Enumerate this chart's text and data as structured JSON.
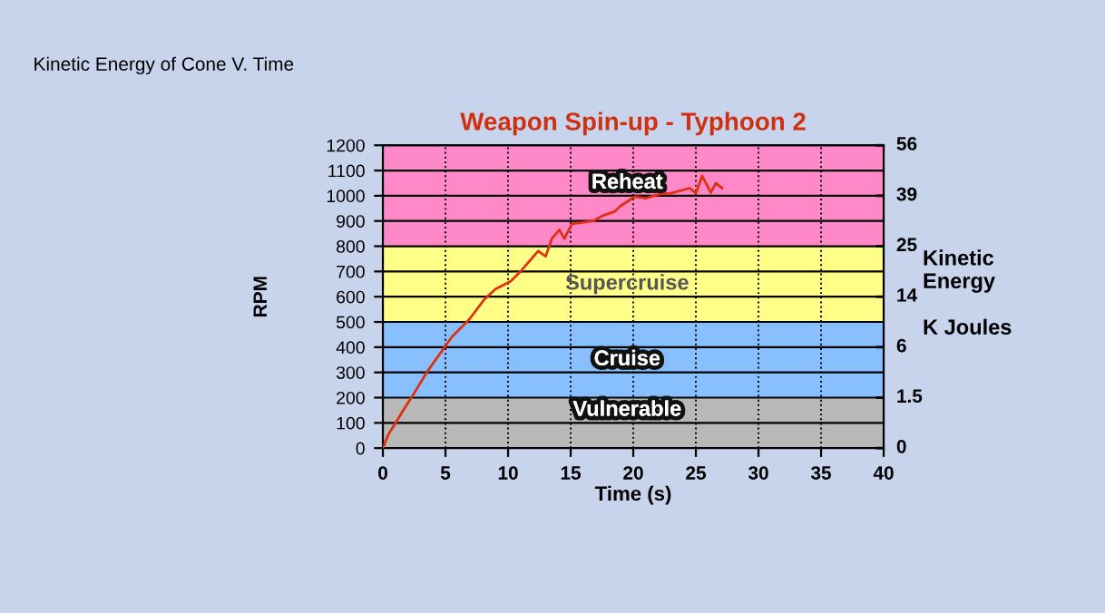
{
  "chart_data": {
    "type": "line",
    "title": "Weapon Spin-up - Typhoon 2",
    "xlabel": "Time (s)",
    "ylabel": "RPM",
    "annotations": [
      "Kinetic Energy of Cone V. Time",
      "Kinetic\nEnergy\n\nK Joules",
      "0",
      "1.5",
      "6",
      "14",
      "25",
      "39",
      "56"
    ],
    "series": [
      {
        "color": "#e03010",
        "x": [
          0,
          0.5,
          1.0,
          1.5,
          2.5,
          3.5,
          4.9,
          5.5,
          6.9,
          8.1,
          9,
          10.2,
          11,
          12.4,
          13,
          13.5,
          14.1,
          14.5,
          15.1,
          16.8,
          17.5,
          18.5,
          19,
          20.1,
          21,
          22.1,
          23,
          24.5,
          25,
          25.5,
          26.2,
          26.6,
          27.1
        ],
        "values": [
          0,
          60,
          98,
          140,
          218,
          300,
          398,
          440,
          510,
          589,
          630,
          661,
          700,
          781,
          760,
          830,
          865,
          830,
          889,
          900,
          920,
          937,
          960,
          996,
          990,
          1006,
          1010,
          1030,
          1010,
          1078,
          1013,
          1050,
          1030
        ]
      }
    ],
    "xlim": [
      0,
      40
    ],
    "xticks": [
      0,
      5,
      10,
      15,
      20,
      25,
      30,
      35,
      40
    ],
    "ylim": [
      0,
      1200
    ],
    "yticks": [
      0,
      100,
      200,
      300,
      400,
      500,
      600,
      700,
      800,
      900,
      1000,
      1100,
      1200
    ],
    "bands": [
      {
        "axis": "y",
        "from": 0,
        "to": 200,
        "label": "Vulnerable",
        "color": "#b8b8b8"
      },
      {
        "axis": "y",
        "from": 200,
        "to": 500,
        "label": "Cruise",
        "color": "#88c0ff"
      },
      {
        "axis": "y",
        "from": 500,
        "to": 800,
        "label": "Supercruise",
        "color": "#ffff88"
      },
      {
        "axis": "y",
        "from": 800,
        "to": 1200,
        "label": "Reheat",
        "color": "#ff88c8"
      }
    ],
    "grid": true,
    "marker": "none",
    "line_style": "solid",
    "legend": false
  }
}
